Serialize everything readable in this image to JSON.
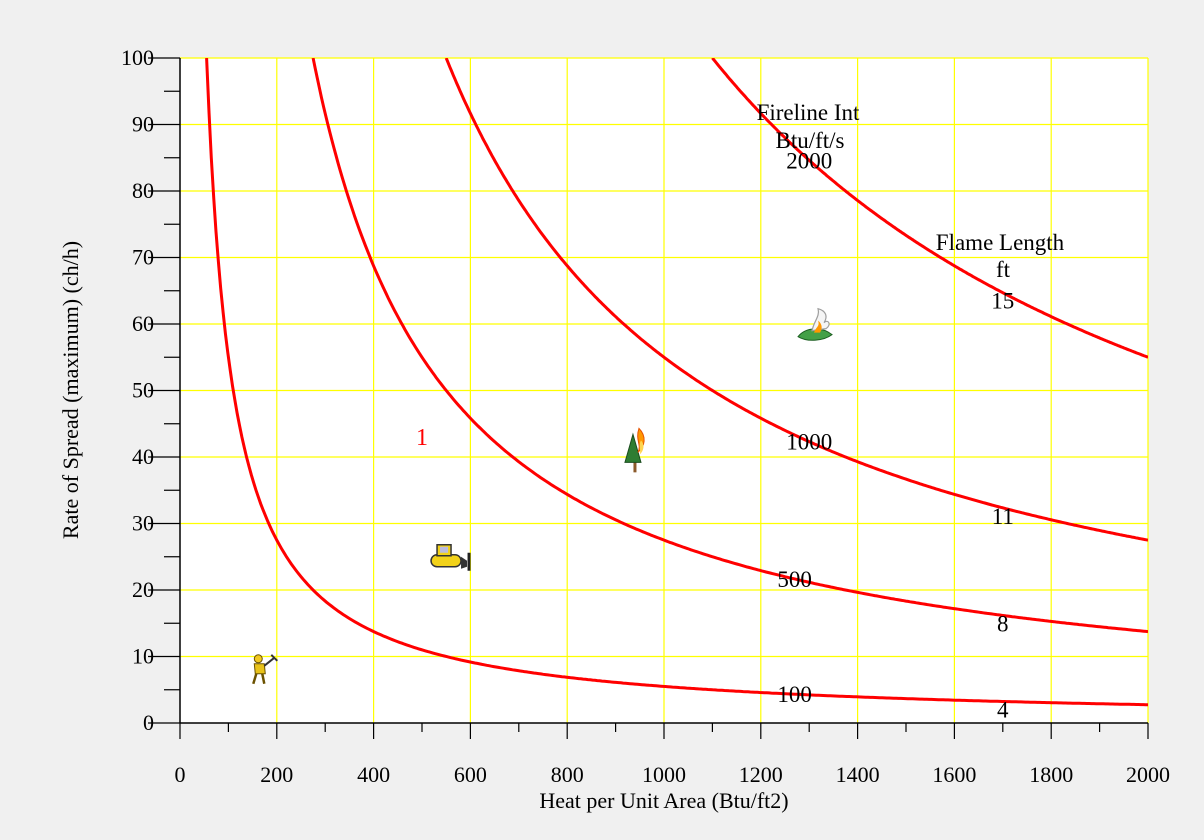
{
  "chart_data": {
    "type": "line",
    "title": "",
    "xlabel": "Heat per Unit Area (Btu/ft2)",
    "ylabel": "Rate of Spread (maximum) (ch/h)",
    "xlim": [
      0,
      2000
    ],
    "ylim": [
      0,
      100
    ],
    "x_ticks": [
      0,
      200,
      400,
      600,
      800,
      1000,
      1200,
      1400,
      1600,
      1800,
      2000
    ],
    "y_ticks": [
      0,
      10,
      20,
      30,
      40,
      50,
      60,
      70,
      80,
      90,
      100
    ],
    "grid": true,
    "grid_color": "#ffff00",
    "curve_color": "#ff0000",
    "series": [
      {
        "fireline_intensity": "100",
        "flame_length": "4",
        "k": 5500
      },
      {
        "fireline_intensity": "500",
        "flame_length": "8",
        "k": 27500
      },
      {
        "fireline_intensity": "1000",
        "flame_length": "11",
        "k": 55000
      },
      {
        "fireline_intensity": "2000",
        "flame_length": "15",
        "k": 110000
      }
    ],
    "header_labels": {
      "fireline_title_1": "Fireline Int",
      "fireline_title_2": "Btu/ft/s",
      "flame_title_1": "Flame Length",
      "flame_title_2": "ft"
    },
    "fireline_label_x": [
      1270,
      1270,
      1300,
      1300
    ],
    "flame_label_x": [
      1700,
      1700,
      1700,
      1700
    ],
    "points": [
      {
        "label": "1",
        "x": 500,
        "y": 43,
        "color": "#ff0000"
      }
    ],
    "icons": [
      {
        "name": "hand-crew-icon",
        "x": 170,
        "y": 8
      },
      {
        "name": "dozer-icon",
        "x": 560,
        "y": 25
      },
      {
        "name": "torching-tree-icon",
        "x": 940,
        "y": 41
      },
      {
        "name": "crown-fire-icon",
        "x": 1310,
        "y": 59
      }
    ]
  }
}
